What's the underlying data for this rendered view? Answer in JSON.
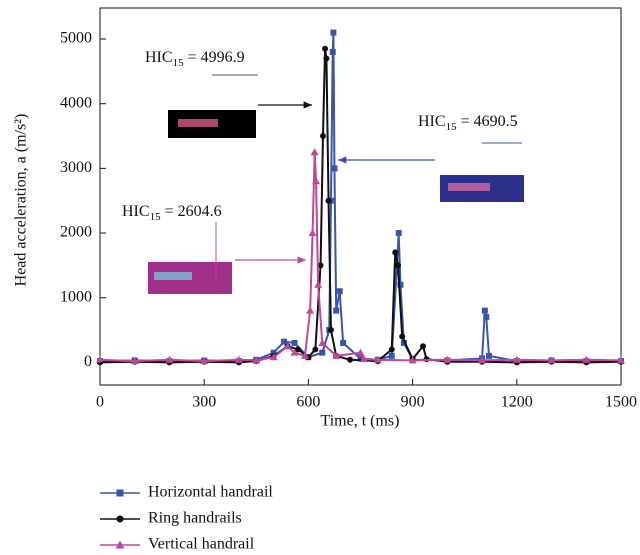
{
  "chart_data": {
    "type": "line",
    "x_label": "Time, t (ms)",
    "y_label": "Head acceleration, a (m/s²)",
    "xlim": [
      0,
      1500
    ],
    "xticks": [
      0,
      300,
      600,
      900,
      1200,
      1500
    ],
    "ylim": [
      -350,
      5480
    ],
    "yticks": [
      0,
      1000,
      2000,
      3000,
      4000,
      5000
    ],
    "series": [
      {
        "name": "Horizontal handrail",
        "color": "#3a55a8",
        "marker": "square",
        "x": [
          0,
          100,
          200,
          300,
          400,
          450,
          500,
          530,
          560,
          600,
          640,
          660,
          665,
          670,
          672,
          675,
          680,
          690,
          700,
          750,
          800,
          840,
          855,
          860,
          865,
          875,
          900,
          1000,
          1100,
          1108,
          1112,
          1120,
          1200,
          1300,
          1400,
          1500
        ],
        "values": [
          20,
          30,
          20,
          30,
          20,
          40,
          150,
          320,
          300,
          80,
          150,
          500,
          2500,
          4800,
          5100,
          3000,
          800,
          1100,
          300,
          60,
          40,
          100,
          1500,
          2000,
          1200,
          300,
          40,
          30,
          60,
          800,
          700,
          100,
          20,
          30,
          20,
          20
        ]
      },
      {
        "name": "Ring handrails",
        "color": "#111111",
        "marker": "circle",
        "x": [
          0,
          100,
          200,
          300,
          400,
          450,
          500,
          540,
          570,
          600,
          620,
          635,
          642,
          648,
          652,
          658,
          665,
          680,
          720,
          800,
          840,
          850,
          858,
          870,
          900,
          930,
          940,
          1000,
          1100,
          1200,
          1300,
          1400,
          1500
        ],
        "values": [
          0,
          10,
          0,
          10,
          0,
          20,
          100,
          250,
          200,
          80,
          200,
          1500,
          3500,
          4850,
          4700,
          2500,
          500,
          100,
          40,
          20,
          200,
          1700,
          1500,
          400,
          50,
          250,
          50,
          10,
          10,
          0,
          10,
          0,
          10
        ]
      },
      {
        "name": "Vertical handrail",
        "color": "#c0479a",
        "marker": "triangle",
        "x": [
          0,
          100,
          200,
          300,
          400,
          450,
          500,
          540,
          560,
          590,
          605,
          612,
          618,
          622,
          628,
          640,
          680,
          750,
          760,
          800,
          900,
          1000,
          1100,
          1200,
          1300,
          1400,
          1500
        ],
        "values": [
          40,
          20,
          40,
          20,
          40,
          30,
          80,
          250,
          150,
          100,
          800,
          2000,
          3250,
          2800,
          1200,
          300,
          100,
          150,
          50,
          40,
          30,
          40,
          30,
          40,
          30,
          40,
          30
        ]
      }
    ],
    "annotations": [
      {
        "prefix": "HIC",
        "subscript": "15",
        "suffix": " = 4996.9"
      },
      {
        "prefix": "HIC",
        "subscript": "15",
        "suffix": " = 4690.5"
      },
      {
        "prefix": "HIC",
        "subscript": "15",
        "suffix": " = 2604.6"
      }
    ]
  }
}
